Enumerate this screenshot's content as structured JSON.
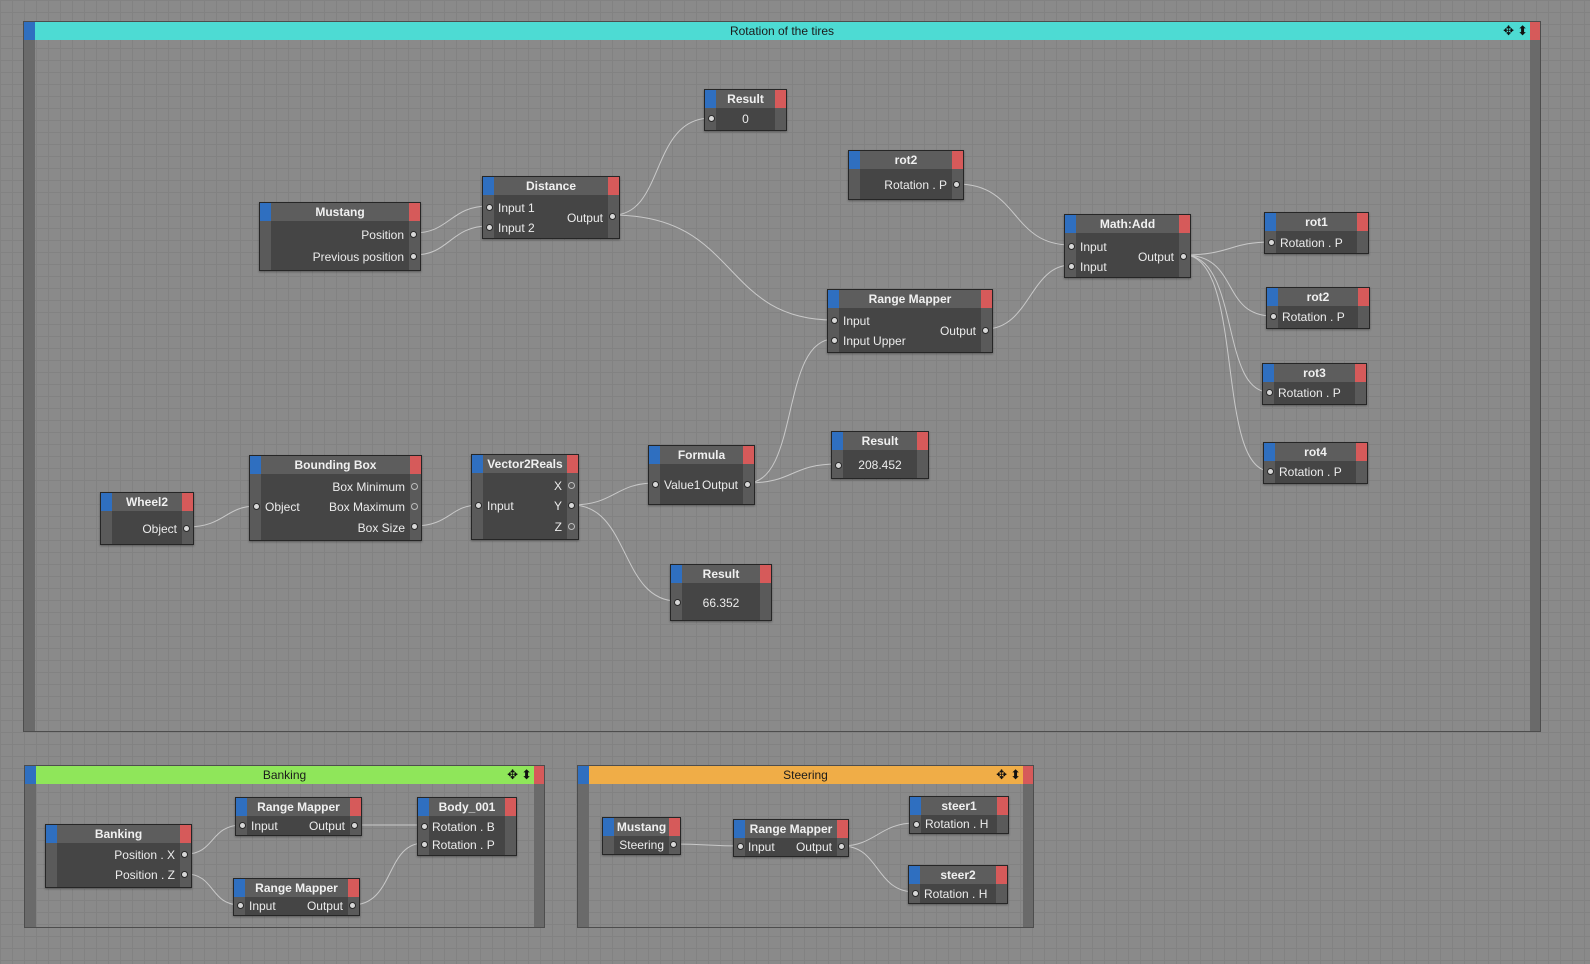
{
  "groups": {
    "rotation": {
      "title": "Rotation of the tires",
      "color": "#4ddbd3"
    },
    "banking": {
      "title": "Banking",
      "color": "#8fe65a"
    },
    "steering": {
      "title": "Steering",
      "color": "#f0ad47"
    }
  },
  "group_icons": {
    "move": "✥",
    "collapse": "⬍"
  },
  "nodes": {
    "result1": {
      "title": "Result",
      "value": "0"
    },
    "rot2_src": {
      "title": "rot2",
      "out": "Rotation . P"
    },
    "mustang": {
      "title": "Mustang",
      "out1": "Position",
      "out2": "Previous position"
    },
    "distance": {
      "title": "Distance",
      "in1": "Input 1",
      "in2": "Input 2",
      "out": "Output"
    },
    "mathadd": {
      "title": "Math:Add",
      "in1": "Input",
      "in2": "Input",
      "out": "Output"
    },
    "rot1": {
      "title": "rot1",
      "in": "Rotation . P"
    },
    "rot2": {
      "title": "rot2",
      "in": "Rotation . P"
    },
    "rot3": {
      "title": "rot3",
      "in": "Rotation . P"
    },
    "rot4": {
      "title": "rot4",
      "in": "Rotation . P"
    },
    "rangemapper_main": {
      "title": "Range Mapper",
      "in1": "Input",
      "in2": "Input Upper",
      "out": "Output"
    },
    "wheel2": {
      "title": "Wheel2",
      "out": "Object"
    },
    "bbox": {
      "title": "Bounding Box",
      "in": "Object",
      "out1": "Box Minimum",
      "out2": "Box Maximum",
      "out3": "Box Size"
    },
    "v2r": {
      "title": "Vector2Reals",
      "in": "Input",
      "out1": "X",
      "out2": "Y",
      "out3": "Z"
    },
    "formula": {
      "title": "Formula",
      "in": "Value1",
      "out": "Output"
    },
    "result2": {
      "title": "Result",
      "value": "208.452"
    },
    "result3": {
      "title": "Result",
      "value": "66.352"
    },
    "banking": {
      "title": "Banking",
      "out1": "Position . X",
      "out2": "Position . Z"
    },
    "rm_b1": {
      "title": "Range Mapper",
      "in": "Input",
      "out": "Output"
    },
    "rm_b2": {
      "title": "Range Mapper",
      "in": "Input",
      "out": "Output"
    },
    "body": {
      "title": "Body_001",
      "in1": "Rotation . B",
      "in2": "Rotation . P"
    },
    "mustang_s": {
      "title": "Mustang",
      "out": "Steering"
    },
    "rm_s": {
      "title": "Range Mapper",
      "in": "Input",
      "out": "Output"
    },
    "steer1": {
      "title": "steer1",
      "in": "Rotation . H"
    },
    "steer2": {
      "title": "steer2",
      "in": "Rotation . H"
    }
  }
}
